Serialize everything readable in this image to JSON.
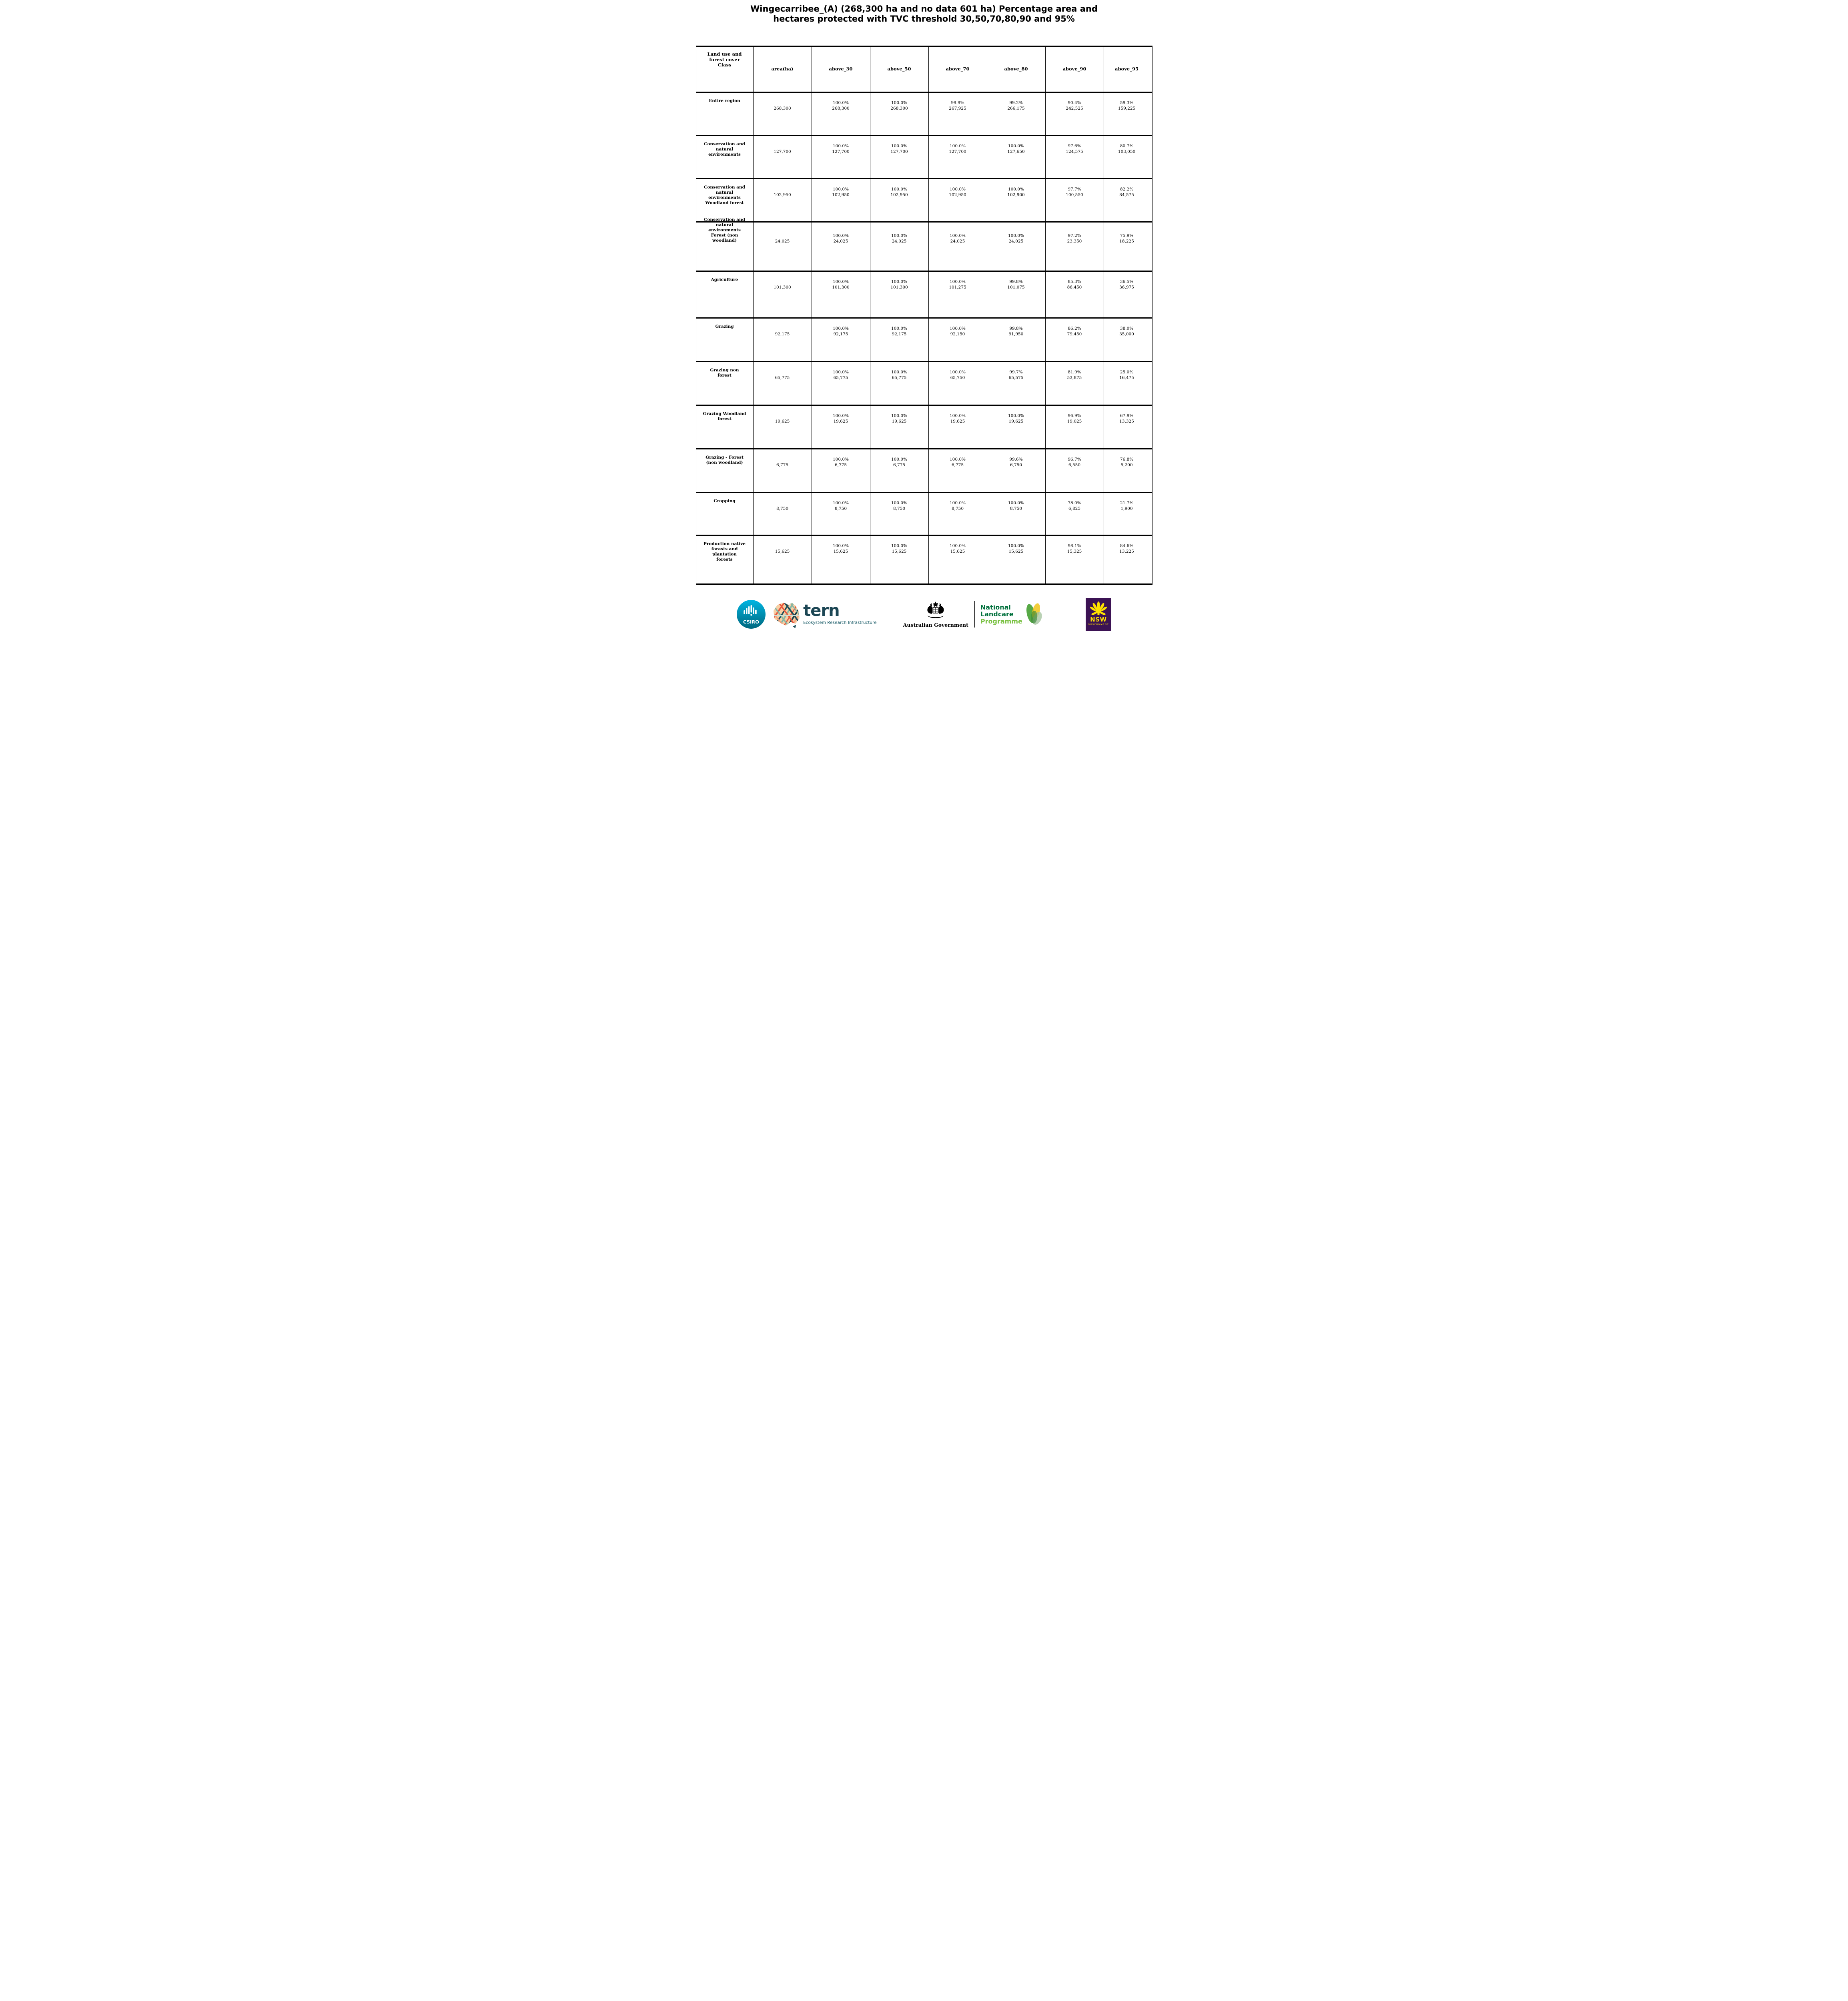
{
  "title": "Wingecarribee_(A) (268,300 ha and no data 601 ha) Percentage area and\nhectares protected with TVC threshold 30,50,70,80,90 and 95%",
  "table": {
    "columns": [
      "Land use and\nforest cover\nClass",
      "area(ha)",
      "above_30",
      "above_50",
      "above_70",
      "above_80",
      "above_90",
      "above_95"
    ],
    "thresholds": [
      30,
      50,
      70,
      80,
      90,
      95
    ],
    "rows": [
      {
        "label": "Entire region",
        "area": "268,300",
        "cells": [
          {
            "pct": "100.0%",
            "ha": "268,300"
          },
          {
            "pct": "100.0%",
            "ha": "268,300"
          },
          {
            "pct": "99.9%",
            "ha": "267,925"
          },
          {
            "pct": "99.2%",
            "ha": "266,175"
          },
          {
            "pct": "90.4%",
            "ha": "242,525"
          },
          {
            "pct": "59.3%",
            "ha": "159,225"
          }
        ]
      },
      {
        "label": "Conservation and\nnatural\nenvironments",
        "area": "127,700",
        "cells": [
          {
            "pct": "100.0%",
            "ha": "127,700"
          },
          {
            "pct": "100.0%",
            "ha": "127,700"
          },
          {
            "pct": "100.0%",
            "ha": "127,700"
          },
          {
            "pct": "100.0%",
            "ha": "127,650"
          },
          {
            "pct": "97.6%",
            "ha": "124,575"
          },
          {
            "pct": "80.7%",
            "ha": "103,050"
          }
        ]
      },
      {
        "label": "Conservation and\nnatural\nenvironments\nWoodland forest",
        "area": "102,950",
        "cells": [
          {
            "pct": "100.0%",
            "ha": "102,950"
          },
          {
            "pct": "100.0%",
            "ha": "102,950"
          },
          {
            "pct": "100.0%",
            "ha": "102,950"
          },
          {
            "pct": "100.0%",
            "ha": "102,900"
          },
          {
            "pct": "97.7%",
            "ha": "100,550"
          },
          {
            "pct": "82.2%",
            "ha": "84,575"
          }
        ]
      },
      {
        "label": "Conservation and\nnatural\nenvironments\nForest (non\nwoodland)",
        "area": "24,025",
        "cells": [
          {
            "pct": "100.0%",
            "ha": "24,025"
          },
          {
            "pct": "100.0%",
            "ha": "24,025"
          },
          {
            "pct": "100.0%",
            "ha": "24,025"
          },
          {
            "pct": "100.0%",
            "ha": "24,025"
          },
          {
            "pct": "97.2%",
            "ha": "23,350"
          },
          {
            "pct": "75.9%",
            "ha": "18,225"
          }
        ]
      },
      {
        "label": "Agriculture",
        "area": "101,300",
        "cells": [
          {
            "pct": "100.0%",
            "ha": "101,300"
          },
          {
            "pct": "100.0%",
            "ha": "101,300"
          },
          {
            "pct": "100.0%",
            "ha": "101,275"
          },
          {
            "pct": "99.8%",
            "ha": "101,075"
          },
          {
            "pct": "85.3%",
            "ha": "86,450"
          },
          {
            "pct": "36.5%",
            "ha": "36,975"
          }
        ]
      },
      {
        "label": "Grazing",
        "area": "92,175",
        "cells": [
          {
            "pct": "100.0%",
            "ha": "92,175"
          },
          {
            "pct": "100.0%",
            "ha": "92,175"
          },
          {
            "pct": "100.0%",
            "ha": "92,150"
          },
          {
            "pct": "99.8%",
            "ha": "91,950"
          },
          {
            "pct": "86.2%",
            "ha": "79,450"
          },
          {
            "pct": "38.0%",
            "ha": "35,000"
          }
        ]
      },
      {
        "label": "Grazing non\nforest",
        "area": "65,775",
        "cells": [
          {
            "pct": "100.0%",
            "ha": "65,775"
          },
          {
            "pct": "100.0%",
            "ha": "65,775"
          },
          {
            "pct": "100.0%",
            "ha": "65,750"
          },
          {
            "pct": "99.7%",
            "ha": "65,575"
          },
          {
            "pct": "81.9%",
            "ha": "53,875"
          },
          {
            "pct": "25.0%",
            "ha": "16,475"
          }
        ]
      },
      {
        "label": "Grazing Woodland\nforest",
        "area": "19,625",
        "cells": [
          {
            "pct": "100.0%",
            "ha": "19,625"
          },
          {
            "pct": "100.0%",
            "ha": "19,625"
          },
          {
            "pct": "100.0%",
            "ha": "19,625"
          },
          {
            "pct": "100.0%",
            "ha": "19,625"
          },
          {
            "pct": "96.9%",
            "ha": "19,025"
          },
          {
            "pct": "67.9%",
            "ha": "13,325"
          }
        ]
      },
      {
        "label": "Grazing - Forest\n(non woodland)",
        "area": "6,775",
        "cells": [
          {
            "pct": "100.0%",
            "ha": "6,775"
          },
          {
            "pct": "100.0%",
            "ha": "6,775"
          },
          {
            "pct": "100.0%",
            "ha": "6,775"
          },
          {
            "pct": "99.6%",
            "ha": "6,750"
          },
          {
            "pct": "96.7%",
            "ha": "6,550"
          },
          {
            "pct": "76.8%",
            "ha": "5,200"
          }
        ]
      },
      {
        "label": "Cropping",
        "area": "8,750",
        "cells": [
          {
            "pct": "100.0%",
            "ha": "8,750"
          },
          {
            "pct": "100.0%",
            "ha": "8,750"
          },
          {
            "pct": "100.0%",
            "ha": "8,750"
          },
          {
            "pct": "100.0%",
            "ha": "8,750"
          },
          {
            "pct": "78.0%",
            "ha": "6,825"
          },
          {
            "pct": "21.7%",
            "ha": "1,900"
          }
        ]
      },
      {
        "label": "Production native\nforests and\nplantation\nforests",
        "area": "15,625",
        "cells": [
          {
            "pct": "100.0%",
            "ha": "15,625"
          },
          {
            "pct": "100.0%",
            "ha": "15,625"
          },
          {
            "pct": "100.0%",
            "ha": "15,625"
          },
          {
            "pct": "100.0%",
            "ha": "15,625"
          },
          {
            "pct": "98.1%",
            "ha": "15,325"
          },
          {
            "pct": "84.6%",
            "ha": "13,225"
          }
        ]
      }
    ]
  },
  "footer": {
    "csiro": {
      "label": "CSIRO"
    },
    "tern": {
      "wordmark": "tern",
      "tagline": "Ecosystem Research Infrastructure"
    },
    "aus_gov": {
      "label": "Australian Government"
    },
    "landcare": {
      "line1": "National",
      "line2": "Landcare",
      "line3": "Programme"
    },
    "nsw": {
      "abbr": "NSW",
      "caption": "GOVERNMENT"
    }
  },
  "colors": {
    "csiro_teal_top": "#00b5e2",
    "csiro_teal_bottom": "#00687f",
    "tern_dark": "#1c4654",
    "tern_teal": "#20606c",
    "landcare_dark_green": "#00703c",
    "landcare_light_green": "#7ac143",
    "nsw_purple": "#3b1253",
    "nsw_yellow": "#ffe100",
    "table_border": "#000000"
  }
}
